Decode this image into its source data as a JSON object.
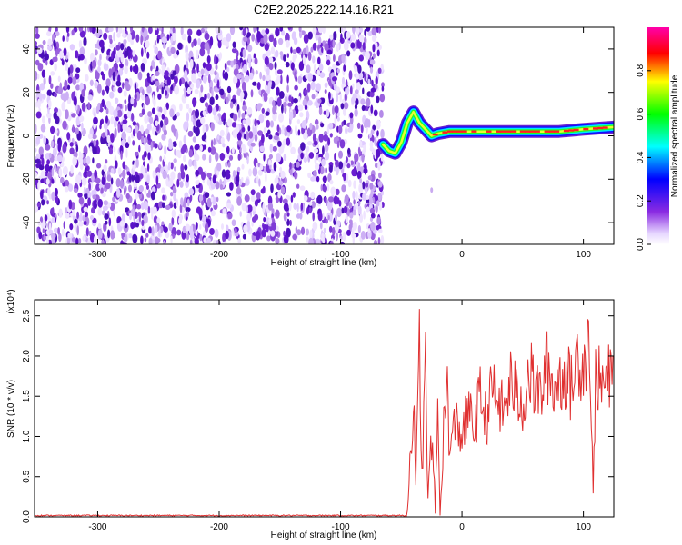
{
  "title": "C2E2.2025.222.14.16.R21",
  "chart_data": [
    {
      "type": "heatmap",
      "xlabel": "Height of straight line (km)",
      "ylabel": "Frequency (Hz)",
      "xlim": [
        -352,
        125
      ],
      "ylim": [
        -50,
        50
      ],
      "xticks": [
        -300,
        -200,
        -100,
        0,
        100
      ],
      "yticks": [
        -40,
        -20,
        0,
        20,
        40
      ],
      "colorbar": {
        "label": "Normalized spectral amplitude",
        "range": [
          0,
          1
        ],
        "ticks": [
          "0.0",
          "0.2",
          "0.4",
          "0.6",
          "0.8"
        ],
        "colormap": "rainbow (white-purple-blue-cyan-green-yellow-red-magenta)"
      },
      "noise_region_x": [
        -352,
        -65
      ],
      "signal_track": {
        "x": [
          -65,
          -60,
          -55,
          -50,
          -45,
          -40,
          -35,
          -30,
          -25,
          -20,
          -10,
          0,
          20,
          40,
          60,
          80,
          100,
          125
        ],
        "y": [
          -4,
          -7,
          -8,
          -3,
          6,
          11,
          6,
          3,
          0,
          1,
          2,
          2,
          2,
          2,
          2,
          2,
          3,
          4
        ]
      }
    },
    {
      "type": "line",
      "xlabel": "Height of straight line (km)",
      "ylabel": "SNR (10 * v/v)",
      "y_multiplier": "(x10⁴)",
      "xlim": [
        -352,
        125
      ],
      "ylim": [
        0,
        2.7
      ],
      "xticks": [
        -300,
        -200,
        -100,
        0,
        100
      ],
      "yticks": [
        0.0,
        0.5,
        1.0,
        1.5,
        2.0,
        2.5
      ],
      "line_color": "#e03030",
      "series": [
        {
          "x": [
            -352,
            -60,
            -45,
            -40,
            -38,
            -35,
            -33,
            -30,
            -28,
            -25,
            -22,
            -20,
            -18,
            -15,
            -12,
            -10,
            -5,
            0,
            5,
            10,
            15,
            20,
            25,
            30,
            35,
            40,
            45,
            50,
            55,
            60,
            65,
            70,
            75,
            80,
            85,
            90,
            95,
            100,
            105,
            108,
            110,
            115,
            120,
            125
          ],
          "y": [
            0.01,
            0.01,
            0.05,
            1.5,
            0.3,
            2.2,
            0.5,
            1.9,
            0.2,
            1.0,
            0.1,
            1.3,
            0.05,
            1.1,
            1.6,
            0.8,
            1.2,
            1.0,
            1.3,
            1.1,
            1.5,
            1.2,
            1.6,
            1.4,
            1.3,
            1.7,
            1.5,
            1.4,
            1.8,
            1.6,
            1.5,
            1.9,
            1.6,
            1.7,
            1.8,
            1.6,
            2.0,
            1.9,
            2.3,
            0.2,
            1.8,
            1.6,
            1.7,
            1.7
          ]
        }
      ]
    }
  ]
}
